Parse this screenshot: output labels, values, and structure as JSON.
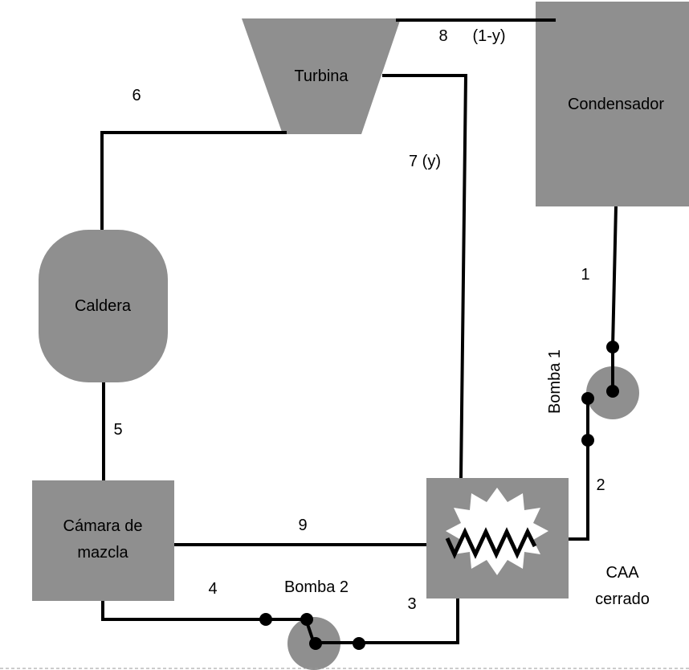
{
  "components": {
    "turbine": "Turbina",
    "condenser": "Condensador",
    "boiler": "Caldera",
    "mixing_chamber": "Cámara de mazcla",
    "closed_feedwater_heater": "CAA cerrado",
    "pump_1": "Bomba 1",
    "pump_2": "Bomba 2"
  },
  "states": {
    "s1": "1",
    "s2": "2",
    "s3": "3",
    "s4": "4",
    "s5": "5",
    "s6": "6",
    "s7": "7 (y)",
    "s8": "8",
    "s8_fraction": "(1-y)",
    "s9": "9"
  },
  "colors": {
    "equipment_fill": "#8f8f8f",
    "pipe": "#000000",
    "burst_fill": "#ffffff",
    "background": "#ffffff"
  }
}
